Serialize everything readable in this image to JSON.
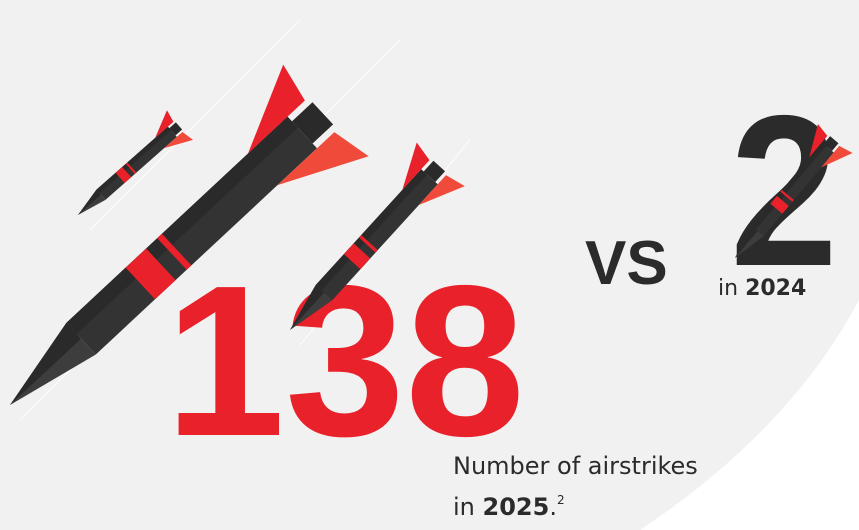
{
  "main": {
    "value": "138",
    "caption": "Number of airstrikes",
    "year_prefix": "in",
    "year": "2025",
    "year_suffix": ".",
    "footnote": "2"
  },
  "vs": "VS",
  "comparison": {
    "value": "2",
    "year_prefix": "in",
    "year": "2024"
  }
}
